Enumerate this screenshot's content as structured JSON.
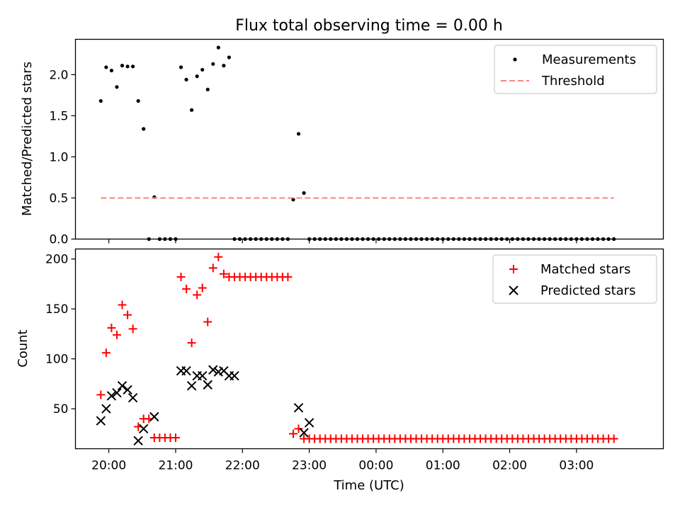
{
  "figure_title": "Flux total observing time = 0.00 h",
  "xlabel": "Time (UTC)",
  "colors": {
    "measurement": "#000000",
    "threshold": "#ff8080",
    "matched": "#ff0000",
    "predicted": "#000000"
  },
  "chart_data": [
    {
      "type": "scatter",
      "title": "Flux total observing time = 0.00 h",
      "ylabel": "Matched/Predicted stars",
      "xlabel": "",
      "xlim": [
        -0.5,
        8.3
      ],
      "ylim": [
        0,
        2.43
      ],
      "x_unit": "hours after 20:00 UTC",
      "xticks": [
        0,
        1,
        2,
        3,
        4,
        5,
        6,
        7
      ],
      "xtick_labels": [
        "20:00",
        "21:00",
        "22:00",
        "23:00",
        "00:00",
        "01:00",
        "02:00",
        "03:00"
      ],
      "yticks": [
        0,
        0.5,
        1.0,
        1.5,
        2.0
      ],
      "ytick_labels": [
        "0.0",
        "0.5",
        "1.0",
        "1.5",
        "2.0"
      ],
      "legend": [
        "Measurements",
        "Threshold"
      ],
      "legend_location": "upper right",
      "series": [
        {
          "name": "Measurements",
          "marker": "dot",
          "x": [
            -0.12,
            -0.04,
            0.04,
            0.12,
            0.2,
            0.28,
            0.36,
            0.44,
            0.52,
            0.6,
            0.68,
            0.76,
            0.84,
            0.92,
            1.0,
            1.08,
            1.16,
            1.24,
            1.32,
            1.4,
            1.48,
            1.56,
            1.64,
            1.72,
            1.8,
            1.88,
            1.96,
            2.04,
            2.12,
            2.2,
            2.28,
            2.36,
            2.44,
            2.52,
            2.6,
            2.68,
            2.76,
            2.84,
            2.92,
            3.0,
            3.08,
            3.16,
            3.24,
            3.32,
            3.4,
            3.48,
            3.56,
            3.64,
            3.72,
            3.8,
            3.88,
            3.96,
            4.04,
            4.12,
            4.2,
            4.28,
            4.36,
            4.44,
            4.52,
            4.6,
            4.68,
            4.76,
            4.84,
            4.92,
            5.0,
            5.08,
            5.16,
            5.24,
            5.32,
            5.4,
            5.48,
            5.56,
            5.64,
            5.72,
            5.8,
            5.88,
            5.96,
            6.04,
            6.12,
            6.2,
            6.28,
            6.36,
            6.44,
            6.52,
            6.6,
            6.68,
            6.76,
            6.84,
            6.92,
            7.0,
            7.08,
            7.16,
            7.24,
            7.32,
            7.4,
            7.48,
            7.56
          ],
          "y": [
            1.68,
            2.09,
            2.05,
            1.85,
            2.11,
            2.1,
            2.1,
            1.68,
            1.34,
            0.0,
            0.51,
            0.0,
            0.0,
            0.0,
            0.0,
            2.09,
            1.94,
            1.57,
            1.98,
            2.06,
            1.82,
            2.13,
            2.33,
            2.11,
            2.21,
            0.0,
            0.0,
            0.0,
            0.0,
            0.0,
            0.0,
            0.0,
            0.0,
            0.0,
            0.0,
            0.0,
            0.48,
            1.28,
            0.56,
            0.0,
            0.0,
            0.0,
            0.0,
            0.0,
            0.0,
            0.0,
            0.0,
            0.0,
            0.0,
            0.0,
            0.0,
            0.0,
            0.0,
            0.0,
            0.0,
            0.0,
            0.0,
            0.0,
            0.0,
            0.0,
            0.0,
            0.0,
            0.0,
            0.0,
            0.0,
            0.0,
            0.0,
            0.0,
            0.0,
            0.0,
            0.0,
            0.0,
            0.0,
            0.0,
            0.0,
            0.0,
            0.0,
            0.0,
            0.0,
            0.0,
            0.0,
            0.0,
            0.0,
            0.0,
            0.0,
            0.0,
            0.0,
            0.0,
            0.0,
            0.0,
            0.0,
            0.0,
            0.0,
            0.0,
            0.0,
            0.0,
            0.0
          ]
        },
        {
          "name": "Threshold",
          "style": "dashed",
          "x": [
            -0.12,
            7.56
          ],
          "y": [
            0.5,
            0.5
          ]
        }
      ]
    },
    {
      "type": "scatter",
      "title": "",
      "ylabel": "Count",
      "xlabel": "Time (UTC)",
      "xlim": [
        -0.5,
        8.3
      ],
      "ylim": [
        10,
        210
      ],
      "x_unit": "hours after 20:00 UTC",
      "xticks": [
        0,
        1,
        2,
        3,
        4,
        5,
        6,
        7
      ],
      "xtick_labels": [
        "20:00",
        "21:00",
        "22:00",
        "23:00",
        "00:00",
        "01:00",
        "02:00",
        "03:00"
      ],
      "yticks": [
        50,
        100,
        150,
        200
      ],
      "ytick_labels": [
        "50",
        "100",
        "150",
        "200"
      ],
      "legend": [
        "Matched stars",
        "Predicted stars"
      ],
      "legend_location": "upper right",
      "series": [
        {
          "name": "Matched stars",
          "marker": "plus",
          "x": [
            -0.12,
            -0.04,
            0.04,
            0.12,
            0.2,
            0.28,
            0.36,
            0.44,
            0.52,
            0.6,
            0.68,
            0.76,
            0.84,
            0.92,
            1.0,
            1.08,
            1.16,
            1.24,
            1.32,
            1.4,
            1.48,
            1.56,
            1.64,
            1.72,
            1.8,
            1.88,
            1.96,
            2.04,
            2.12,
            2.2,
            2.28,
            2.36,
            2.44,
            2.52,
            2.6,
            2.68,
            2.76,
            2.84,
            2.92,
            3.0,
            3.08,
            3.16,
            3.24,
            3.32,
            3.4,
            3.48,
            3.56,
            3.64,
            3.72,
            3.8,
            3.88,
            3.96,
            4.04,
            4.12,
            4.2,
            4.28,
            4.36,
            4.44,
            4.52,
            4.6,
            4.68,
            4.76,
            4.84,
            4.92,
            5.0,
            5.08,
            5.16,
            5.24,
            5.32,
            5.4,
            5.48,
            5.56,
            5.64,
            5.72,
            5.8,
            5.88,
            5.96,
            6.04,
            6.12,
            6.2,
            6.28,
            6.36,
            6.44,
            6.52,
            6.6,
            6.68,
            6.76,
            6.84,
            6.92,
            7.0,
            7.08,
            7.16,
            7.24,
            7.32,
            7.4,
            7.48,
            7.56
          ],
          "y": [
            64,
            106,
            131,
            124,
            154,
            144,
            130,
            32,
            40,
            40,
            21,
            21,
            21,
            21,
            21,
            182,
            170,
            116,
            164,
            171,
            137,
            191,
            202,
            185,
            182,
            182,
            182,
            182,
            182,
            182,
            182,
            182,
            182,
            182,
            182,
            182,
            25,
            30,
            20,
            20,
            20,
            20,
            20,
            20,
            20,
            20,
            20,
            20,
            20,
            20,
            20,
            20,
            20,
            20,
            20,
            20,
            20,
            20,
            20,
            20,
            20,
            20,
            20,
            20,
            20,
            20,
            20,
            20,
            20,
            20,
            20,
            20,
            20,
            20,
            20,
            20,
            20,
            20,
            20,
            20,
            20,
            20,
            20,
            20,
            20,
            20,
            20,
            20,
            20,
            20,
            20,
            20,
            20,
            20,
            20,
            20,
            20
          ]
        },
        {
          "name": "Predicted stars",
          "marker": "x",
          "x": [
            -0.12,
            -0.04,
            0.04,
            0.12,
            0.2,
            0.28,
            0.36,
            0.44,
            0.52,
            0.68,
            1.08,
            1.16,
            1.24,
            1.32,
            1.4,
            1.48,
            1.56,
            1.64,
            1.72,
            1.8,
            1.88,
            2.84,
            2.92,
            3.0
          ],
          "y": [
            38,
            50,
            63,
            66,
            73,
            69,
            61,
            18,
            30,
            42,
            88,
            88,
            73,
            83,
            83,
            74,
            89,
            87,
            88,
            83,
            83,
            51,
            26,
            36
          ]
        }
      ]
    }
  ]
}
